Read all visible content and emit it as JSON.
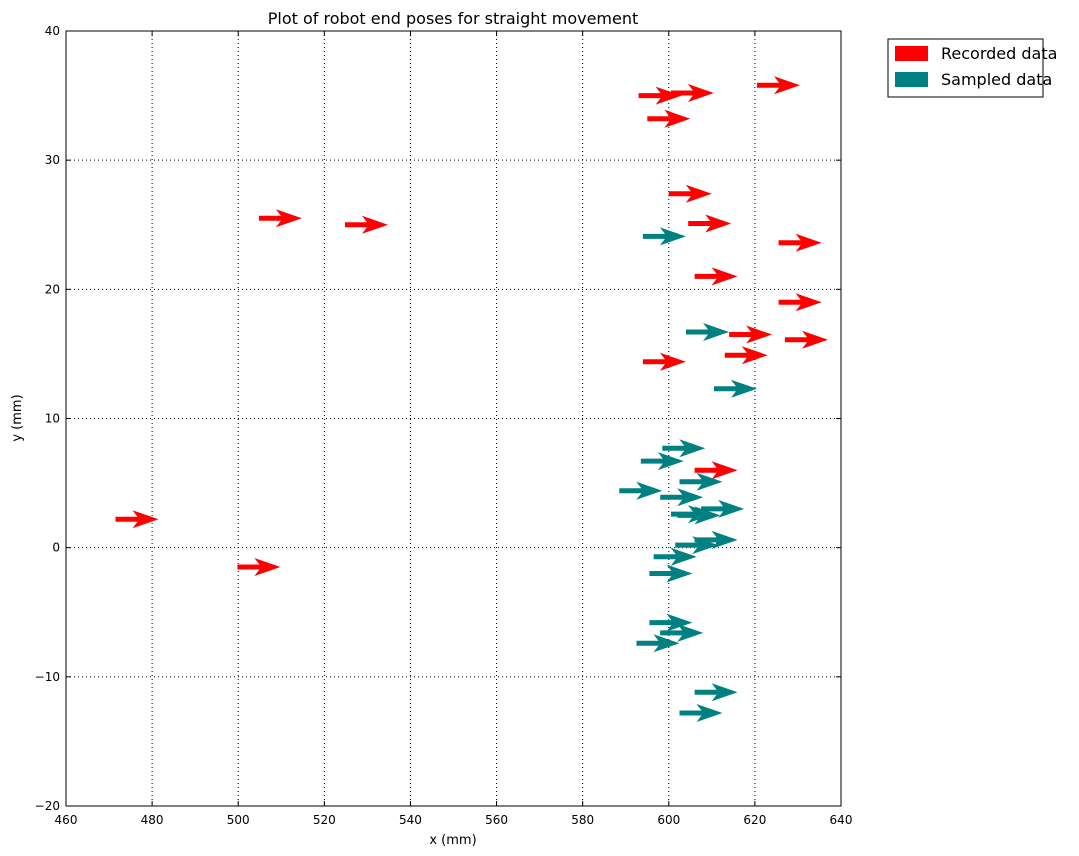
{
  "chart_data": {
    "type": "scatter",
    "title": "Plot of robot end poses for straight movement",
    "xlabel": "x (mm)",
    "ylabel": "y (mm)",
    "xlim": [
      460,
      640
    ],
    "ylim": [
      -20,
      40
    ],
    "xticks": [
      460,
      480,
      500,
      520,
      540,
      560,
      580,
      600,
      620,
      640
    ],
    "yticks": [
      -20,
      -10,
      0,
      10,
      20,
      30,
      40
    ],
    "xtick_labels": [
      "460",
      "480",
      "500",
      "520",
      "540",
      "560",
      "580",
      "600",
      "620",
      "640"
    ],
    "ytick_labels": [
      "−20",
      "−10",
      "0",
      "10",
      "20",
      "30",
      "40"
    ],
    "grid": true,
    "marker": "arrow pointing right",
    "legend_position": "outside-top-right",
    "series": [
      {
        "name": "Recorded data",
        "color": "#ff0000",
        "points": [
          [
            471.5,
            2.2
          ],
          [
            504.8,
            25.5
          ],
          [
            524.8,
            25.0
          ],
          [
            499.8,
            -1.5
          ],
          [
            593.0,
            35.0
          ],
          [
            600.5,
            35.2
          ],
          [
            620.5,
            35.8
          ],
          [
            595.0,
            33.2
          ],
          [
            600.0,
            27.4
          ],
          [
            604.5,
            25.1
          ],
          [
            625.5,
            23.6
          ],
          [
            606.0,
            21.0
          ],
          [
            625.5,
            19.0
          ],
          [
            614.0,
            16.5
          ],
          [
            627.0,
            16.1
          ],
          [
            613.0,
            14.9
          ],
          [
            594.0,
            14.4
          ],
          [
            606.0,
            6.0
          ]
        ]
      },
      {
        "name": "Sampled data",
        "color": "#008080",
        "points": [
          [
            594.0,
            24.1
          ],
          [
            604.0,
            16.7
          ],
          [
            610.5,
            12.3
          ],
          [
            598.5,
            7.7
          ],
          [
            593.5,
            6.7
          ],
          [
            602.5,
            5.1
          ],
          [
            588.5,
            4.4
          ],
          [
            598.0,
            3.9
          ],
          [
            600.5,
            2.6
          ],
          [
            602.0,
            2.5
          ],
          [
            607.5,
            3.0
          ],
          [
            606.0,
            0.6
          ],
          [
            601.5,
            0.2
          ],
          [
            596.5,
            -0.7
          ],
          [
            595.5,
            -2.0
          ],
          [
            595.5,
            -5.8
          ],
          [
            598.0,
            -6.6
          ],
          [
            592.5,
            -7.4
          ],
          [
            606.0,
            -11.2
          ],
          [
            602.5,
            -12.8
          ]
        ]
      }
    ]
  }
}
